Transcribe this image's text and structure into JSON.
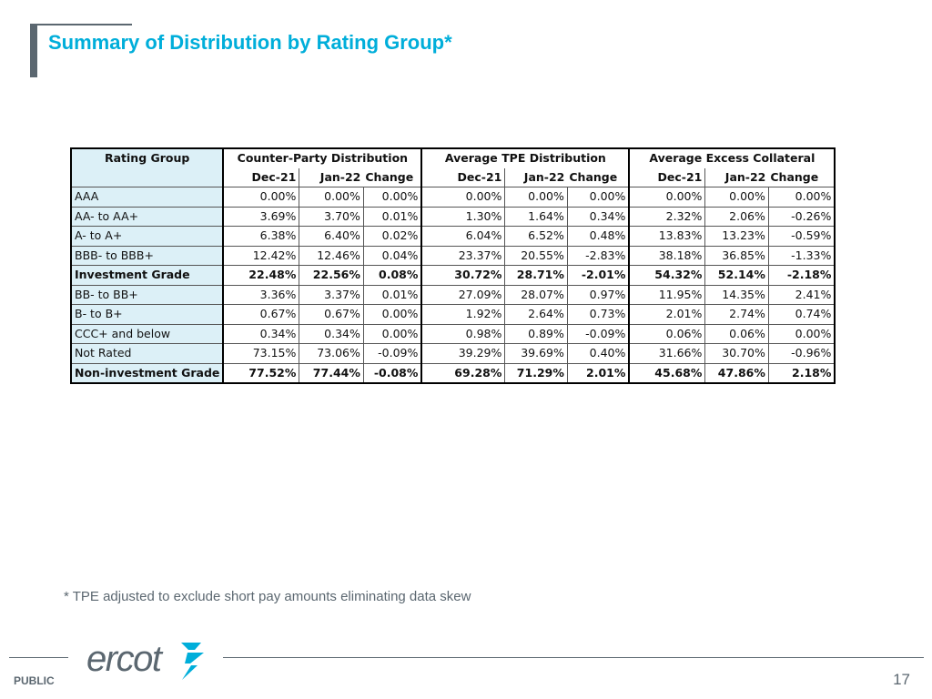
{
  "title": "Summary of Distribution by Rating Group*",
  "table": {
    "row_header": "Rating Group",
    "groups": [
      "Counter-Party Distribution",
      "Average TPE Distribution",
      "Average Excess Collateral"
    ],
    "subheaders": [
      "Dec-21",
      "Jan-22",
      "Change"
    ],
    "rows": [
      {
        "label": "AAA",
        "values": [
          "0.00%",
          "0.00%",
          "0.00%",
          "0.00%",
          "0.00%",
          "0.00%",
          "0.00%",
          "0.00%",
          "0.00%"
        ]
      },
      {
        "label": "AA- to AA+",
        "values": [
          "3.69%",
          "3.70%",
          "0.01%",
          "1.30%",
          "1.64%",
          "0.34%",
          "2.32%",
          "2.06%",
          "-0.26%"
        ]
      },
      {
        "label": "A- to A+",
        "values": [
          "6.38%",
          "6.40%",
          "0.02%",
          "6.04%",
          "6.52%",
          "0.48%",
          "13.83%",
          "13.23%",
          "-0.59%"
        ]
      },
      {
        "label": "BBB- to BBB+",
        "values": [
          "12.42%",
          "12.46%",
          "0.04%",
          "23.37%",
          "20.55%",
          "-2.83%",
          "38.18%",
          "36.85%",
          "-1.33%"
        ]
      },
      {
        "label": "Investment Grade",
        "values": [
          "22.48%",
          "22.56%",
          "0.08%",
          "30.72%",
          "28.71%",
          "-2.01%",
          "54.32%",
          "52.14%",
          "-2.18%"
        ]
      },
      {
        "label": "BB- to BB+",
        "values": [
          "3.36%",
          "3.37%",
          "0.01%",
          "27.09%",
          "28.07%",
          "0.97%",
          "11.95%",
          "14.35%",
          "2.41%"
        ]
      },
      {
        "label": "B- to B+",
        "values": [
          "0.67%",
          "0.67%",
          "0.00%",
          "1.92%",
          "2.64%",
          "0.73%",
          "2.01%",
          "2.74%",
          "0.74%"
        ]
      },
      {
        "label": "CCC+ and below",
        "values": [
          "0.34%",
          "0.34%",
          "0.00%",
          "0.98%",
          "0.89%",
          "-0.09%",
          "0.06%",
          "0.06%",
          "0.00%"
        ]
      },
      {
        "label": "Not Rated",
        "values": [
          "73.15%",
          "73.06%",
          "-0.09%",
          "39.29%",
          "39.69%",
          "0.40%",
          "31.66%",
          "30.70%",
          "-0.96%"
        ]
      },
      {
        "label": "Non-investment Grade",
        "values": [
          "77.52%",
          "77.44%",
          "-0.08%",
          "69.28%",
          "71.29%",
          "2.01%",
          "45.68%",
          "47.86%",
          "2.18%"
        ]
      }
    ]
  },
  "footnote": "* TPE adjusted to exclude short pay amounts eliminating data skew",
  "footer": {
    "logo_text": "ercot",
    "classification": "PUBLIC",
    "page_number": "17"
  },
  "colors": {
    "title": "#00aeda",
    "accent_gray": "#5b6770",
    "label_fill": "#dcf0f7",
    "logo_bolt": "#00aeda"
  },
  "icons": [
    "ercot-logo",
    "lightning-bolt-icon"
  ]
}
